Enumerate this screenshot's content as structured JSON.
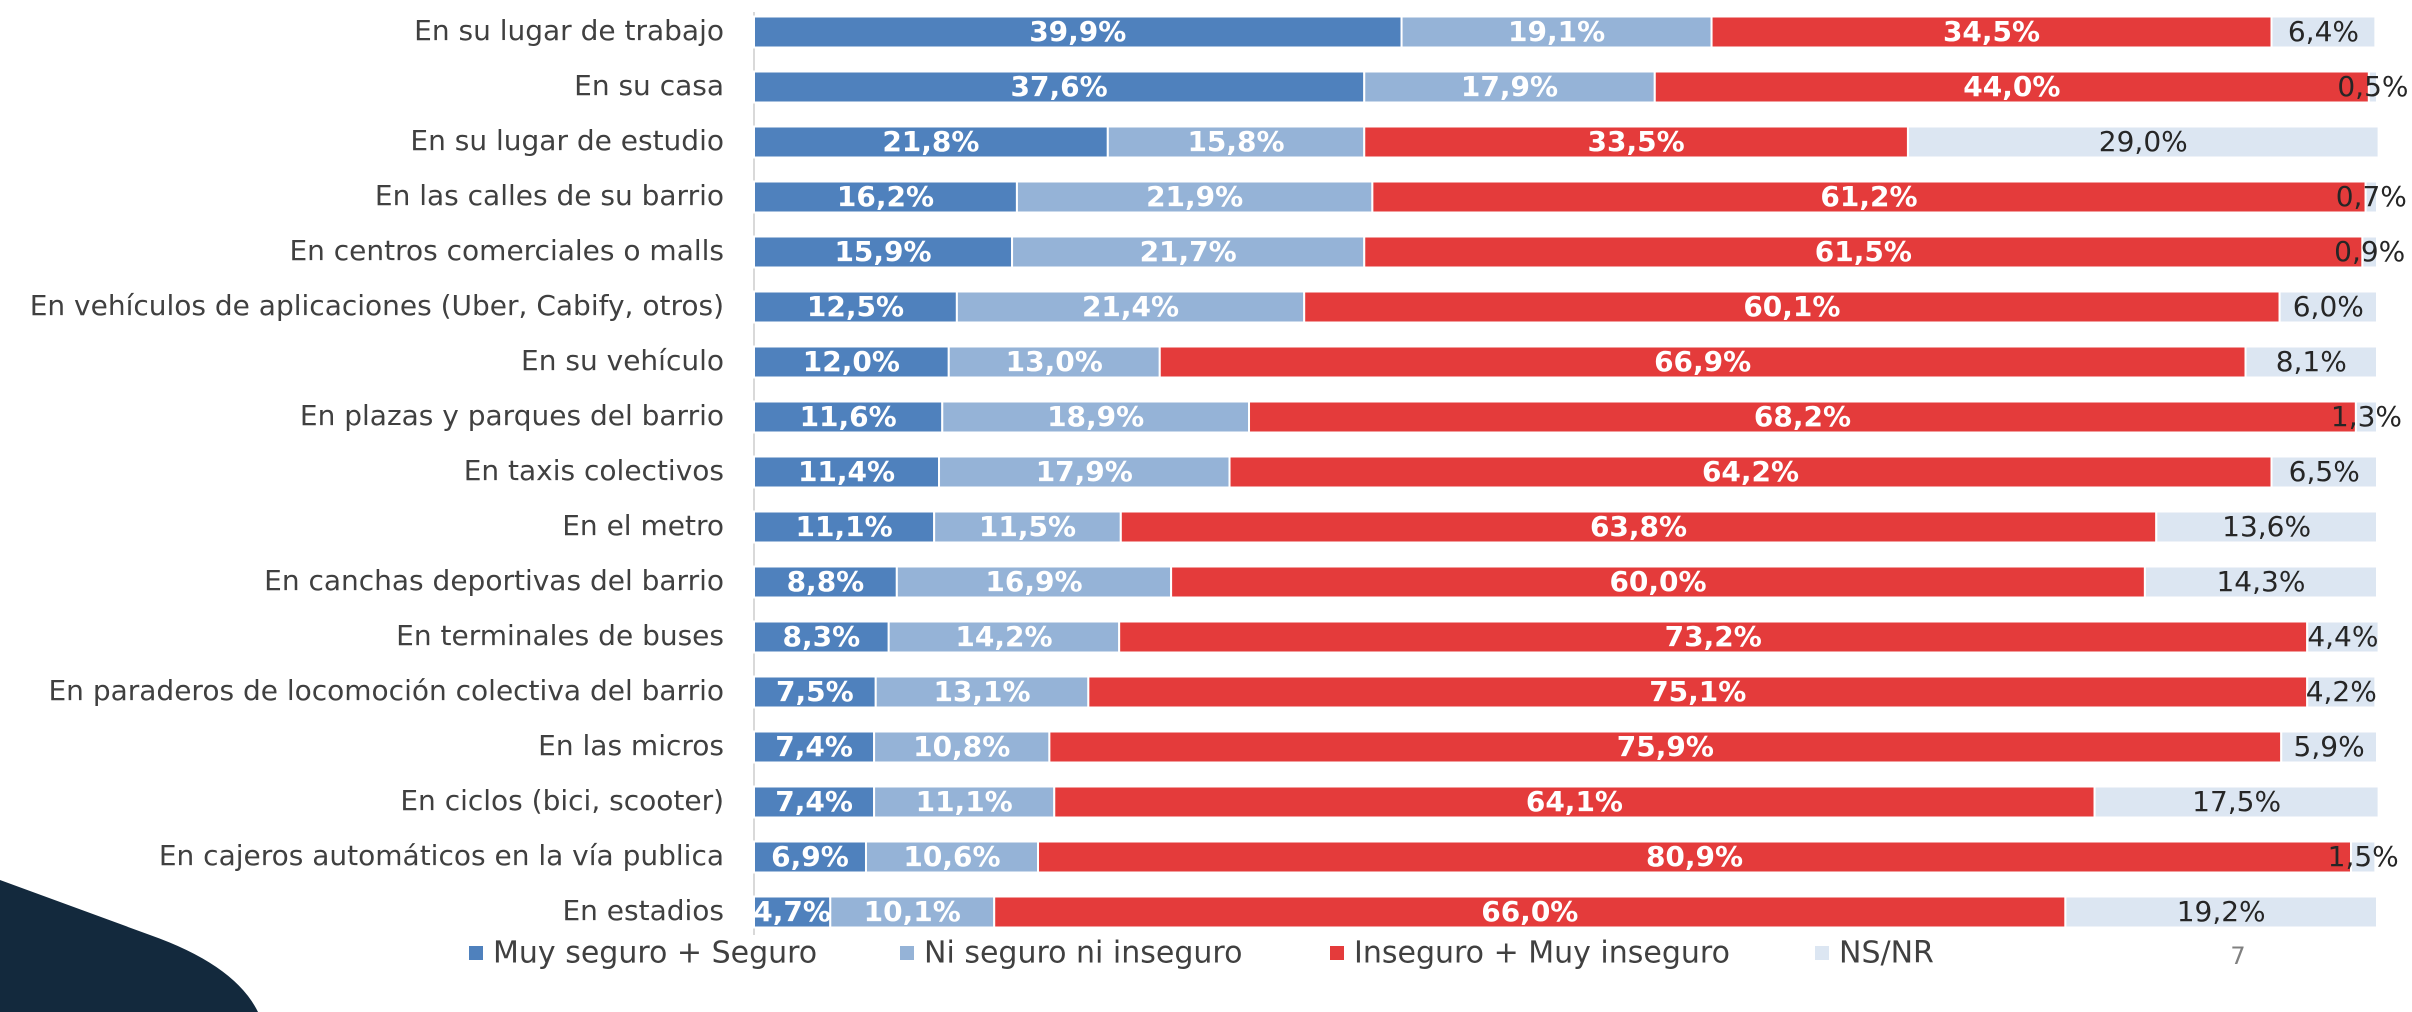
{
  "chart_data": {
    "type": "stacked-barh",
    "categories": [
      "En su lugar de trabajo",
      "En su casa",
      "En su lugar de estudio",
      "En las calles de su barrio",
      "En centros comerciales o malls",
      "En vehículos de aplicaciones (Uber, Cabify, otros)",
      "En su vehículo",
      "En plazas y parques del barrio",
      "En taxis colectivos",
      "En el metro",
      "En canchas deportivas del barrio",
      "En terminales de buses",
      "En paraderos de locomoción colectiva del barrio",
      "En las micros",
      "En ciclos (bici, scooter)",
      "En cajeros automáticos en la vía publica",
      "En estadios"
    ],
    "xlim": [
      0,
      100
    ],
    "legend": "bottom",
    "series": [
      {
        "name": "Muy seguro + Seguro",
        "color": "#4f81bd",
        "label_color": "#ffffff",
        "values": [
          39.9,
          37.6,
          21.8,
          16.2,
          15.9,
          12.5,
          12.0,
          11.6,
          11.4,
          11.1,
          8.8,
          8.3,
          7.5,
          7.4,
          7.4,
          6.9,
          4.7
        ],
        "value_labels": [
          "39,9%",
          "37,6%",
          "21,8%",
          "16,2%",
          "15,9%",
          "12,5%",
          "12,0%",
          "11,6%",
          "11,4%",
          "11,1%",
          "8,8%",
          "8,3%",
          "7,5%",
          "7,4%",
          "7,4%",
          "6,9%",
          "4,7%"
        ]
      },
      {
        "name": "Ni seguro ni inseguro",
        "color": "#95b3d7",
        "label_color": "#ffffff",
        "values": [
          19.1,
          17.9,
          15.8,
          21.9,
          21.7,
          21.4,
          13.0,
          18.9,
          17.9,
          11.5,
          16.9,
          14.2,
          13.1,
          10.8,
          11.1,
          10.6,
          10.1
        ],
        "value_labels": [
          "19,1%",
          "17,9%",
          "15,8%",
          "21,9%",
          "21,7%",
          "21,4%",
          "13,0%",
          "18,9%",
          "17,9%",
          "11,5%",
          "16,9%",
          "14,2%",
          "13,1%",
          "10,8%",
          "11,1%",
          "10,6%",
          "10,1%"
        ]
      },
      {
        "name": "Inseguro + Muy inseguro",
        "color": "#e43b3b",
        "label_color": "#ffffff",
        "values": [
          34.5,
          44.0,
          33.5,
          61.2,
          61.5,
          60.1,
          66.9,
          68.2,
          64.2,
          63.8,
          60.0,
          73.2,
          75.1,
          75.9,
          64.1,
          80.9,
          66.0
        ],
        "value_labels": [
          "34,5%",
          "44,0%",
          "33,5%",
          "61,2%",
          "61,5%",
          "60,1%",
          "66,9%",
          "68,2%",
          "64,2%",
          "63,8%",
          "60,0%",
          "73,2%",
          "75,1%",
          "75,9%",
          "64,1%",
          "80,9%",
          "66,0%"
        ]
      },
      {
        "name": "NS/NR",
        "color": "#dce6f2",
        "label_color": "#262626",
        "values": [
          6.4,
          0.5,
          29.0,
          0.7,
          0.9,
          6.0,
          8.1,
          1.3,
          6.5,
          13.6,
          14.3,
          4.4,
          4.2,
          5.9,
          17.5,
          1.5,
          19.2
        ],
        "value_labels": [
          "6,4%",
          "0,5%",
          "29,0%",
          "0,7%",
          "0,9%",
          "6,0%",
          "8,1%",
          "1,3%",
          "6,5%",
          "13,6%",
          "14,3%",
          "4,4%",
          "4,2%",
          "5,9%",
          "17,5%",
          "1,5%",
          "19,2%"
        ]
      }
    ]
  },
  "slide": {
    "page_number": "7"
  }
}
